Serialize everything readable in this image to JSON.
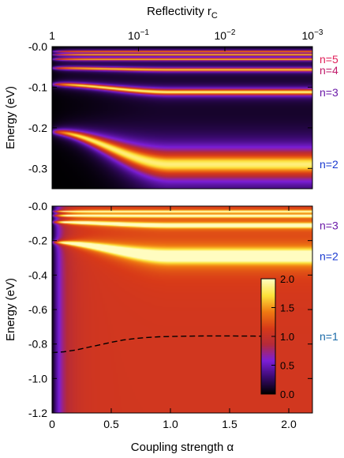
{
  "figure": {
    "top_axis_label": "Reflectivity r",
    "top_axis_label_sub": "C",
    "bottom_axis_label": "Coupling strength α",
    "y_axis_label": "Energy (eV)"
  },
  "colorbar": {
    "ticks": [
      "0.0",
      "0.5",
      "1.0",
      "1.5",
      "2.0"
    ],
    "range": [
      0,
      2
    ],
    "colormap": [
      "#000000",
      "#3a0a6e",
      "#7c1ed8",
      "#b52a3a",
      "#d83a18",
      "#f07a12",
      "#fde23a",
      "#fffcc0"
    ]
  },
  "chart_data": [
    {
      "type": "heatmap",
      "panel": "top",
      "xlim": [
        0,
        2.2
      ],
      "ylim": [
        -0.35,
        0.0
      ],
      "ylabel": "Energy (eV)",
      "yticks": [
        "-0.0",
        "-0.1",
        "-0.2",
        "-0.3"
      ],
      "ytick_values": [
        0.0,
        -0.1,
        -0.2,
        -0.3
      ],
      "top_axis": {
        "label": "Reflectivity r",
        "label_sub": "C",
        "ticks": [
          {
            "label": "1",
            "sup": "",
            "alpha": 0.0
          },
          {
            "label": "10",
            "sup": "−1",
            "alpha": 0.73
          },
          {
            "label": "10",
            "sup": "−2",
            "alpha": 1.46
          },
          {
            "label": "10",
            "sup": "−3",
            "alpha": 2.2
          }
        ]
      },
      "state_labels": [
        {
          "text": "n=5",
          "energy": -0.031,
          "color": "#e0205a"
        },
        {
          "text": "n=4",
          "energy": -0.058,
          "color": "#c01a6a"
        },
        {
          "text": "n=3",
          "energy": -0.113,
          "color": "#6b1aa8"
        },
        {
          "text": "n=2",
          "energy": -0.29,
          "color": "#1a3ad0"
        }
      ],
      "bands": [
        {
          "e0": -0.012,
          "e1": -0.012,
          "w0": 0.002,
          "w1": 0.002,
          "amp": 1.4
        },
        {
          "e0": -0.02,
          "e1": -0.02,
          "w0": 0.002,
          "w1": 0.002,
          "amp": 1.45
        },
        {
          "e0": -0.031,
          "e1": -0.031,
          "w0": 0.0025,
          "w1": 0.0025,
          "amp": 1.55
        },
        {
          "e0": -0.053,
          "e1": -0.057,
          "w0": 0.003,
          "w1": 0.0035,
          "amp": 1.7
        },
        {
          "e0": -0.093,
          "e1": -0.112,
          "w0": 0.004,
          "w1": 0.006,
          "amp": 1.85
        },
        {
          "e0": -0.21,
          "e1": -0.29,
          "w0": 0.006,
          "w1": 0.028,
          "amp": 1.85
        }
      ]
    },
    {
      "type": "heatmap",
      "panel": "bottom",
      "xlim": [
        0,
        2.2
      ],
      "ylim": [
        -1.2,
        0.0
      ],
      "xlabel": "Coupling strength α",
      "ylabel": "Energy (eV)",
      "xticks": [
        "0",
        "0.5",
        "1.0",
        "1.5",
        "2.0"
      ],
      "xtick_values": [
        0,
        0.5,
        1.0,
        1.5,
        2.0
      ],
      "yticks": [
        "-0.0",
        "-0.2",
        "-0.4",
        "-0.6",
        "-0.8",
        "-1.0",
        "-1.2"
      ],
      "ytick_values": [
        0.0,
        -0.2,
        -0.4,
        -0.6,
        -0.8,
        -1.0,
        -1.2
      ],
      "state_labels": [
        {
          "text": "n=3",
          "energy": -0.113,
          "color": "#6b1aa8"
        },
        {
          "text": "n=2",
          "energy": -0.29,
          "color": "#1a3ad0"
        },
        {
          "text": "n=1",
          "energy": -0.755,
          "color": "#1a6aa8"
        }
      ],
      "bands": [
        {
          "e0": -0.031,
          "e1": -0.031,
          "w0": 0.004,
          "w1": 0.004,
          "amp": 1.5
        },
        {
          "e0": -0.055,
          "e1": -0.057,
          "w0": 0.005,
          "w1": 0.005,
          "amp": 1.6
        },
        {
          "e0": -0.093,
          "e1": -0.112,
          "w0": 0.006,
          "w1": 0.009,
          "amp": 1.75
        },
        {
          "e0": -0.21,
          "e1": -0.29,
          "w0": 0.008,
          "w1": 0.03,
          "amp": 1.75
        }
      ],
      "dashed_line": {
        "alpha": [
          0.0,
          0.1,
          0.2,
          0.3,
          0.4,
          0.5,
          0.6,
          0.7,
          0.8,
          0.9,
          1.0,
          1.1,
          1.2,
          1.3,
          1.4,
          1.5,
          1.6,
          1.7,
          1.8
        ],
        "energy": [
          -0.85,
          -0.845,
          -0.835,
          -0.82,
          -0.805,
          -0.79,
          -0.777,
          -0.768,
          -0.762,
          -0.758,
          -0.756,
          -0.755,
          -0.754,
          -0.753,
          -0.753,
          -0.753,
          -0.754,
          -0.754,
          -0.755
        ]
      }
    }
  ]
}
